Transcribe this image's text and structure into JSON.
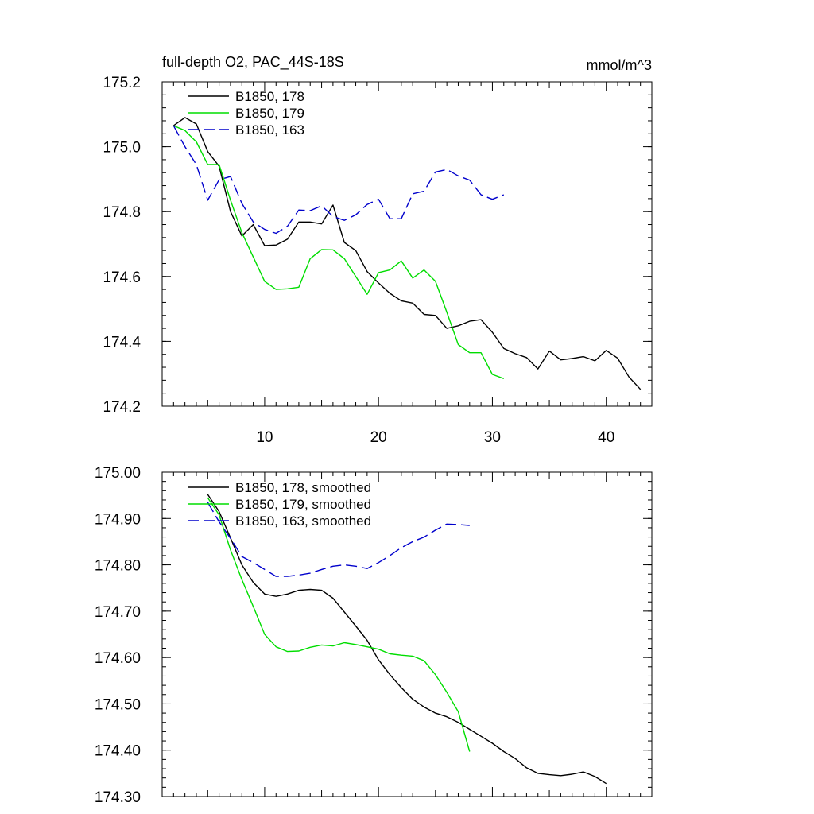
{
  "chart_data": [
    {
      "type": "line",
      "title": "full-depth O2, PAC_44S-18S",
      "units": "mmol/m^3",
      "xlim": [
        1,
        44
      ],
      "ylim": [
        174.2,
        175.2
      ],
      "xticks": [
        10,
        20,
        30,
        40
      ],
      "yticks": [
        174.2,
        174.4,
        174.6,
        174.8,
        175.0,
        175.2
      ],
      "ytick_labels": [
        "174.2",
        "174.4",
        "174.6",
        "174.8",
        "175.0",
        "175.2"
      ],
      "legend_position": "top-left",
      "series": [
        {
          "name": "B1850, 178",
          "color": "#000000",
          "dash": "solid",
          "x": [
            2,
            3,
            4,
            5,
            6,
            7,
            8,
            9,
            10,
            11,
            12,
            13,
            14,
            15,
            16,
            17,
            18,
            19,
            20,
            21,
            22,
            23,
            24,
            25,
            26,
            27,
            28,
            29,
            30,
            31,
            32,
            33,
            34,
            35,
            36,
            37,
            38,
            39,
            40,
            41,
            42,
            43
          ],
          "y": [
            175.065,
            175.09,
            175.07,
            174.985,
            174.94,
            174.8,
            174.725,
            174.76,
            174.695,
            174.697,
            174.715,
            174.768,
            174.768,
            174.762,
            174.82,
            174.705,
            174.68,
            174.615,
            174.58,
            174.548,
            174.525,
            174.518,
            174.483,
            174.48,
            174.44,
            174.448,
            174.462,
            174.467,
            174.428,
            174.378,
            174.362,
            174.35,
            174.315,
            174.37,
            174.343,
            174.347,
            174.353,
            174.34,
            174.372,
            174.348,
            174.29,
            174.252
          ]
        },
        {
          "name": "B1850, 179",
          "color": "#00dd00",
          "dash": "solid",
          "x": [
            2,
            3,
            4,
            5,
            6,
            7,
            8,
            9,
            10,
            11,
            12,
            13,
            14,
            15,
            16,
            17,
            18,
            19,
            20,
            21,
            22,
            23,
            24,
            25,
            26,
            27,
            28,
            29,
            30,
            31
          ],
          "y": [
            175.065,
            175.05,
            175.015,
            174.945,
            174.945,
            174.835,
            174.735,
            174.66,
            174.585,
            174.56,
            174.562,
            174.567,
            174.655,
            174.683,
            174.682,
            174.655,
            174.6,
            174.545,
            174.612,
            174.62,
            174.648,
            174.595,
            174.62,
            174.585,
            174.49,
            174.39,
            174.365,
            174.365,
            174.298,
            174.285
          ]
        },
        {
          "name": "B1850, 163",
          "color": "#0000cc",
          "dash": "dashed",
          "x": [
            2,
            3,
            4,
            5,
            6,
            7,
            8,
            9,
            10,
            11,
            12,
            13,
            14,
            15,
            16,
            17,
            18,
            19,
            20,
            21,
            22,
            23,
            24,
            25,
            26,
            27,
            28,
            29,
            30,
            31
          ],
          "y": [
            175.065,
            175.0,
            174.945,
            174.835,
            174.898,
            174.908,
            174.825,
            174.768,
            174.745,
            174.733,
            174.755,
            174.805,
            174.803,
            174.818,
            174.785,
            174.773,
            174.79,
            174.822,
            174.838,
            174.778,
            174.778,
            174.855,
            174.863,
            174.922,
            174.93,
            174.91,
            174.897,
            174.852,
            174.838,
            174.852
          ]
        }
      ]
    },
    {
      "type": "line",
      "title": "",
      "xlim": [
        1,
        44
      ],
      "ylim": [
        174.3,
        175.0
      ],
      "xticks": [
        10,
        20,
        30,
        40
      ],
      "yticks": [
        174.3,
        174.4,
        174.5,
        174.6,
        174.7,
        174.8,
        174.9,
        175.0
      ],
      "ytick_labels": [
        "174.30",
        "174.40",
        "174.50",
        "174.60",
        "174.70",
        "174.80",
        "174.90",
        "175.00"
      ],
      "legend_position": "top-left",
      "series": [
        {
          "name": "B1850, 178, smoothed",
          "color": "#000000",
          "dash": "solid",
          "x": [
            5,
            6,
            7,
            8,
            9,
            10,
            11,
            12,
            13,
            14,
            15,
            16,
            17,
            18,
            19,
            20,
            21,
            22,
            23,
            24,
            25,
            26,
            27,
            28,
            29,
            30,
            31,
            32,
            33,
            34,
            35,
            36,
            37,
            38,
            39,
            40
          ],
          "y": [
            174.952,
            174.915,
            174.858,
            174.8,
            174.762,
            174.737,
            174.732,
            174.737,
            174.745,
            174.747,
            174.745,
            174.728,
            174.698,
            174.668,
            174.637,
            174.595,
            174.563,
            174.535,
            174.51,
            174.493,
            174.48,
            174.472,
            174.46,
            174.445,
            174.43,
            174.415,
            174.397,
            174.382,
            174.362,
            174.35,
            174.347,
            174.345,
            174.348,
            174.353,
            174.343,
            174.328
          ]
        },
        {
          "name": "B1850, 179, smoothed",
          "color": "#00dd00",
          "dash": "solid",
          "x": [
            5,
            6,
            7,
            8,
            9,
            10,
            11,
            12,
            13,
            14,
            15,
            16,
            17,
            18,
            19,
            20,
            21,
            22,
            23,
            24,
            25,
            26,
            27,
            28
          ],
          "y": [
            174.945,
            174.908,
            174.832,
            174.768,
            174.71,
            174.65,
            174.623,
            174.613,
            174.614,
            174.622,
            174.627,
            174.625,
            174.632,
            174.628,
            174.623,
            174.618,
            174.608,
            174.605,
            174.603,
            174.593,
            174.563,
            174.525,
            174.483,
            174.397
          ]
        },
        {
          "name": "B1850, 163, smoothed",
          "color": "#0000cc",
          "dash": "dashed",
          "x": [
            5,
            6,
            7,
            8,
            9,
            10,
            11,
            12,
            13,
            14,
            15,
            16,
            17,
            18,
            19,
            20,
            21,
            22,
            23,
            24,
            25,
            26,
            27,
            28
          ],
          "y": [
            174.935,
            174.893,
            174.857,
            174.818,
            174.805,
            174.79,
            174.775,
            174.775,
            174.778,
            174.782,
            174.79,
            174.797,
            174.8,
            174.797,
            174.792,
            174.805,
            174.82,
            174.837,
            174.85,
            174.86,
            174.875,
            174.888,
            174.887,
            174.885
          ]
        }
      ]
    }
  ]
}
